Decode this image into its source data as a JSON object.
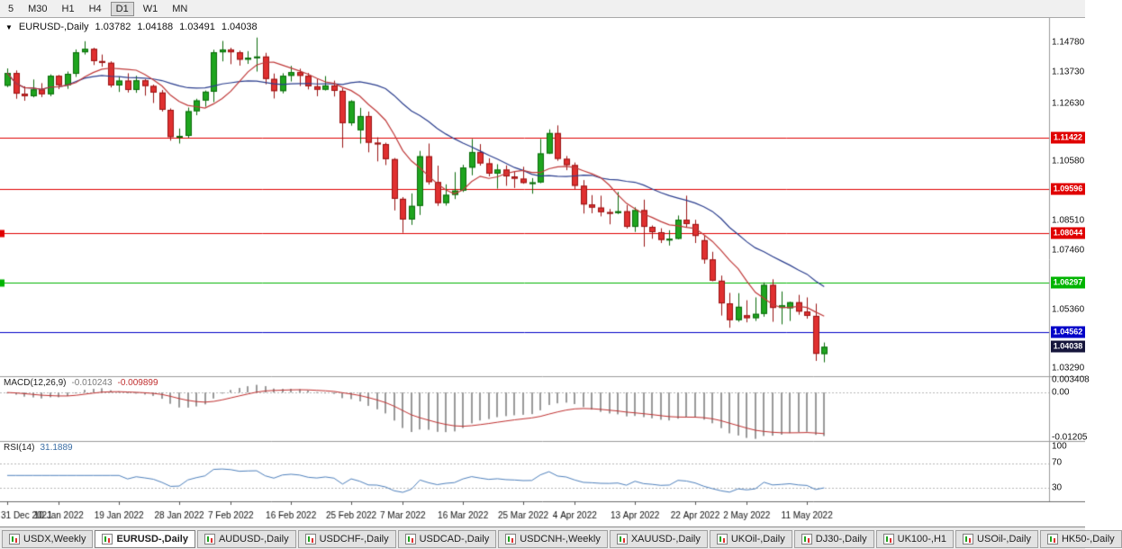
{
  "toolbar": {
    "timeframes": [
      {
        "label": "5",
        "active": false
      },
      {
        "label": "M30",
        "active": false
      },
      {
        "label": "H1",
        "active": false
      },
      {
        "label": "H4",
        "active": false
      },
      {
        "label": "D1",
        "active": true
      },
      {
        "label": "W1",
        "active": false
      },
      {
        "label": "MN",
        "active": false
      }
    ]
  },
  "chart_header": {
    "collapse_icon": "▼",
    "symbol": "EURUSD-,Daily",
    "open": "1.03782",
    "high": "1.04188",
    "low": "1.03491",
    "close": "1.04038"
  },
  "indicators": {
    "macd": {
      "title": "MACD(12,26,9)",
      "value": "-0.010243",
      "signal": "-0.009899",
      "axis_labels": [
        {
          "text": "0.003408",
          "y": 402
        },
        {
          "text": "0.00",
          "y": 416
        },
        {
          "text": "-0.01205",
          "y": 466
        }
      ]
    },
    "rsi": {
      "title": "RSI(14)",
      "value": "31.1889",
      "axis_labels": [
        {
          "text": "100",
          "y": 476
        },
        {
          "text": "70",
          "y": 494
        },
        {
          "text": "30",
          "y": 522
        }
      ]
    }
  },
  "price_axis": {
    "labels": [
      {
        "text": "1.14780",
        "price": 1.1478
      },
      {
        "text": "1.13730",
        "price": 1.1373
      },
      {
        "text": "1.12630",
        "price": 1.1263
      },
      {
        "text": "1.10580",
        "price": 1.1058
      },
      {
        "text": "1.08510",
        "price": 1.0851
      },
      {
        "text": "1.07460",
        "price": 1.0746
      },
      {
        "text": "1.05360",
        "price": 1.0536
      },
      {
        "text": "1.03290",
        "price": 1.0329
      }
    ],
    "tags": [
      {
        "text": "1.11422",
        "price": 1.11422,
        "bg": "#e00000",
        "current": false
      },
      {
        "text": "1.09596",
        "price": 1.09596,
        "bg": "#e00000",
        "current": false
      },
      {
        "text": "1.08044",
        "price": 1.08044,
        "bg": "#e00000",
        "current": false
      },
      {
        "text": "1.06297",
        "price": 1.06297,
        "bg": "#00b400",
        "current": false
      },
      {
        "text": "1.04562",
        "price": 1.04562,
        "bg": "#0000c8",
        "current": false
      },
      {
        "text": "1.04038",
        "price": 1.04038,
        "bg": "#16163c",
        "current": true
      }
    ]
  },
  "tabs": {
    "items": [
      {
        "label": "USDX,Weekly",
        "active": false
      },
      {
        "label": "EURUSD-,Daily",
        "active": true
      },
      {
        "label": "AUDUSD-,Daily",
        "active": false
      },
      {
        "label": "USDCHF-,Daily",
        "active": false
      },
      {
        "label": "USDCAD-,Daily",
        "active": false
      },
      {
        "label": "USDCNH-,Weekly",
        "active": false
      },
      {
        "label": "XAUUSD-,Daily",
        "active": false
      },
      {
        "label": "UKOil-,Daily",
        "active": false
      },
      {
        "label": "DJ30-,Daily",
        "active": false
      },
      {
        "label": "UK100-,H1",
        "active": false
      },
      {
        "label": "USOil-,Daily",
        "active": false
      },
      {
        "label": "HK50-,Daily",
        "active": false
      }
    ]
  },
  "chart_data": {
    "type": "candlestick",
    "title": "EURUSD-,Daily",
    "ylim": [
      1.03,
      1.1564
    ],
    "bar_spacing": 9.55,
    "first_bar_x": 8,
    "x_labels": [
      {
        "i": 0,
        "text": "31 Dec 2021"
      },
      {
        "i": 6,
        "text": "10 Jan 2022"
      },
      {
        "i": 13,
        "text": "19 Jan 2022"
      },
      {
        "i": 20,
        "text": "28 Jan 2022"
      },
      {
        "i": 26,
        "text": "7 Feb 2022"
      },
      {
        "i": 33,
        "text": "16 Feb 2022"
      },
      {
        "i": 40,
        "text": "25 Feb 2022"
      },
      {
        "i": 46,
        "text": "7 Mar 2022"
      },
      {
        "i": 53,
        "text": "16 Mar 2022"
      },
      {
        "i": 60,
        "text": "25 Mar 2022"
      },
      {
        "i": 66,
        "text": "4 Apr 2022"
      },
      {
        "i": 73,
        "text": "13 Apr 2022"
      },
      {
        "i": 80,
        "text": "22 Apr 2022"
      },
      {
        "i": 86,
        "text": "2 May 2022"
      },
      {
        "i": 93,
        "text": "11 May 2022"
      }
    ],
    "hlines": [
      {
        "price": 1.11422,
        "color": "#e00000",
        "left_marker": false
      },
      {
        "price": 1.09596,
        "color": "#e00000",
        "left_marker": false
      },
      {
        "price": 1.08044,
        "color": "#e00000",
        "left_marker": true
      },
      {
        "price": 1.06297,
        "color": "#00b400",
        "left_marker": true
      },
      {
        "price": 1.04562,
        "color": "#0000c8",
        "left_marker": false
      }
    ],
    "colors": {
      "up": "#1fa51f",
      "up_border": "#0b6b0b",
      "down": "#e03030",
      "down_border": "#991414",
      "ma_fast": "#c03a3a",
      "ma_slow": "#2c3f8f",
      "macd_histogram": "#9a9a9a",
      "macd_signal": "#c03030",
      "rsi_line": "#4f81bd",
      "grid_dash": "#b8b8b8"
    },
    "overlays": {
      "ma_fast": {
        "period": 8,
        "color": "#c03a3a"
      },
      "ma_slow": {
        "period": 21,
        "color": "#2c3f8f"
      }
    },
    "macd": {
      "fast": 12,
      "slow": 26,
      "signal": 9,
      "ylim": [
        -0.01205,
        0.003408
      ]
    },
    "rsi": {
      "period": 14,
      "levels": [
        70,
        30
      ],
      "ylim": [
        10,
        100
      ]
    },
    "candles": [
      [
        1.1325,
        1.1386,
        1.132,
        1.137
      ],
      [
        1.137,
        1.1379,
        1.1279,
        1.1297
      ],
      [
        1.1297,
        1.1323,
        1.1272,
        1.1288
      ],
      [
        1.1288,
        1.1347,
        1.1284,
        1.1312
      ],
      [
        1.1312,
        1.1334,
        1.1285,
        1.1295
      ],
      [
        1.1295,
        1.1365,
        1.1288,
        1.136
      ],
      [
        1.136,
        1.1363,
        1.1313,
        1.1327
      ],
      [
        1.1327,
        1.1375,
        1.1314,
        1.1367
      ],
      [
        1.1367,
        1.1453,
        1.1356,
        1.1443
      ],
      [
        1.1443,
        1.1482,
        1.1435,
        1.1455
      ],
      [
        1.1455,
        1.1459,
        1.1398,
        1.1412
      ],
      [
        1.1412,
        1.1435,
        1.1392,
        1.1406
      ],
      [
        1.1406,
        1.1411,
        1.1319,
        1.1326
      ],
      [
        1.1326,
        1.1357,
        1.1303,
        1.1343
      ],
      [
        1.1343,
        1.1369,
        1.1301,
        1.131
      ],
      [
        1.131,
        1.136,
        1.13,
        1.1344
      ],
      [
        1.1344,
        1.1348,
        1.129,
        1.1324
      ],
      [
        1.1324,
        1.1329,
        1.1264,
        1.1301
      ],
      [
        1.1301,
        1.131,
        1.1234,
        1.124
      ],
      [
        1.124,
        1.1245,
        1.1131,
        1.1144
      ],
      [
        1.1144,
        1.1174,
        1.1121,
        1.1148
      ],
      [
        1.1148,
        1.1248,
        1.1141,
        1.1235
      ],
      [
        1.1235,
        1.1279,
        1.1221,
        1.1273
      ],
      [
        1.1273,
        1.1308,
        1.1251,
        1.1304
      ],
      [
        1.1304,
        1.1452,
        1.1267,
        1.1443
      ],
      [
        1.1443,
        1.1483,
        1.1411,
        1.1453
      ],
      [
        1.1453,
        1.1459,
        1.1401,
        1.1443
      ],
      [
        1.1443,
        1.1449,
        1.1396,
        1.1417
      ],
      [
        1.1417,
        1.1447,
        1.1402,
        1.1424
      ],
      [
        1.1424,
        1.1495,
        1.1375,
        1.1428
      ],
      [
        1.1428,
        1.1441,
        1.133,
        1.1349
      ],
      [
        1.1349,
        1.1368,
        1.128,
        1.1306
      ],
      [
        1.1306,
        1.1369,
        1.1298,
        1.136
      ],
      [
        1.136,
        1.1395,
        1.134,
        1.1373
      ],
      [
        1.1373,
        1.1385,
        1.1324,
        1.136
      ],
      [
        1.136,
        1.137,
        1.1312,
        1.1323
      ],
      [
        1.1323,
        1.1349,
        1.1288,
        1.1311
      ],
      [
        1.1311,
        1.1359,
        1.1308,
        1.1326
      ],
      [
        1.1326,
        1.1343,
        1.1287,
        1.1307
      ],
      [
        1.1307,
        1.1316,
        1.1106,
        1.1193
      ],
      [
        1.1193,
        1.1274,
        1.1184,
        1.127
      ],
      [
        1.1168,
        1.1247,
        1.1121,
        1.1218
      ],
      [
        1.1218,
        1.1234,
        1.109,
        1.1124
      ],
      [
        1.1124,
        1.1143,
        1.1058,
        1.1119
      ],
      [
        1.1119,
        1.1124,
        1.1045,
        1.1066
      ],
      [
        1.1066,
        1.107,
        1.0885,
        1.0926
      ],
      [
        1.0926,
        1.0932,
        1.0806,
        1.0853
      ],
      [
        1.0853,
        1.0945,
        1.0834,
        1.0901
      ],
      [
        1.0901,
        1.1095,
        1.0869,
        1.1076
      ],
      [
        1.1076,
        1.1121,
        1.0976,
        1.0985
      ],
      [
        1.0985,
        1.1043,
        1.0901,
        1.0911
      ],
      [
        1.0911,
        1.0977,
        1.0902,
        1.094
      ],
      [
        1.094,
        1.102,
        1.0925,
        1.0955
      ],
      [
        1.0955,
        1.1046,
        1.095,
        1.1036
      ],
      [
        1.1036,
        1.1137,
        1.1009,
        1.1091
      ],
      [
        1.1091,
        1.1119,
        1.1043,
        1.1051
      ],
      [
        1.1051,
        1.1069,
        1.1005,
        1.1015
      ],
      [
        1.1015,
        1.1048,
        1.0962,
        1.1029
      ],
      [
        1.1029,
        1.1044,
        1.0972,
        1.1005
      ],
      [
        1.1005,
        1.1021,
        1.0964,
        1.0997
      ],
      [
        1.0997,
        1.1039,
        1.0979,
        1.0982
      ],
      [
        1.0982,
        1.0999,
        1.0944,
        1.0984
      ],
      [
        1.0984,
        1.1137,
        1.0981,
        1.1086
      ],
      [
        1.1086,
        1.1171,
        1.1084,
        1.1158
      ],
      [
        1.1158,
        1.1185,
        1.106,
        1.1067
      ],
      [
        1.1067,
        1.1077,
        1.1027,
        1.1045
      ],
      [
        1.1045,
        1.1054,
        1.096,
        1.0972
      ],
      [
        1.0972,
        1.0992,
        1.0874,
        1.0906
      ],
      [
        1.0906,
        1.0939,
        1.0875,
        1.0895
      ],
      [
        1.0895,
        1.0937,
        1.0864,
        1.0879
      ],
      [
        1.0879,
        1.089,
        1.0836,
        1.0876
      ],
      [
        1.0876,
        1.095,
        1.0872,
        1.0882
      ],
      [
        1.0882,
        1.0904,
        1.0821,
        1.0827
      ],
      [
        1.0827,
        1.0896,
        1.0809,
        1.0886
      ],
      [
        1.0886,
        1.0923,
        1.0757,
        1.0827
      ],
      [
        1.0827,
        1.0832,
        1.0785,
        1.0808
      ],
      [
        1.0808,
        1.0822,
        1.077,
        1.0781
      ],
      [
        1.0781,
        1.0815,
        1.0761,
        1.0785
      ],
      [
        1.0785,
        1.0867,
        1.0783,
        1.0852
      ],
      [
        1.0852,
        1.0937,
        1.0824,
        1.0837
      ],
      [
        1.0837,
        1.0852,
        1.077,
        1.0795
      ],
      [
        1.078,
        1.0798,
        1.0697,
        1.0712
      ],
      [
        1.0712,
        1.0739,
        1.0635,
        1.0637
      ],
      [
        1.0637,
        1.0655,
        1.0514,
        1.0557
      ],
      [
        1.0557,
        1.0594,
        1.0471,
        1.0498
      ],
      [
        1.0498,
        1.0593,
        1.0492,
        1.0545
      ],
      [
        1.0515,
        1.0568,
        1.049,
        1.0505
      ],
      [
        1.0505,
        1.0578,
        1.0495,
        1.052
      ],
      [
        1.052,
        1.0631,
        1.051,
        1.0622
      ],
      [
        1.0622,
        1.0642,
        1.0492,
        1.0541
      ],
      [
        1.0541,
        1.0599,
        1.0483,
        1.055
      ],
      [
        1.054,
        1.0563,
        1.0495,
        1.0561
      ],
      [
        1.0561,
        1.0587,
        1.0517,
        1.0528
      ],
      [
        1.0528,
        1.0578,
        1.0503,
        1.0513
      ],
      [
        1.0513,
        1.0556,
        1.0354,
        1.0379
      ],
      [
        1.03782,
        1.04188,
        1.03491,
        1.04038
      ]
    ]
  }
}
